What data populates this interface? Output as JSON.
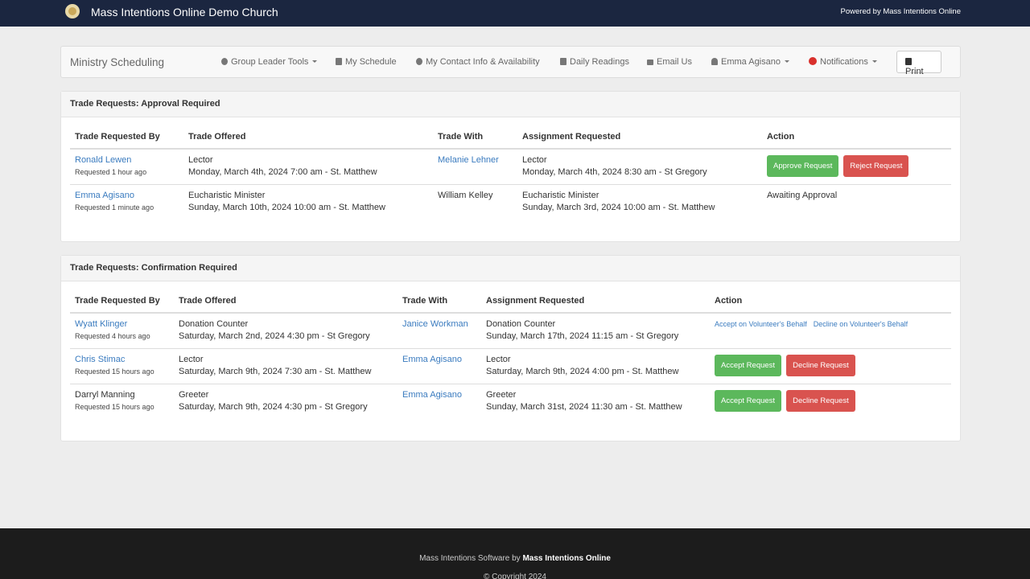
{
  "header": {
    "title": "Mass Intentions Online Demo Church",
    "powered": "Powered by Mass Intentions Online"
  },
  "nav": {
    "brand": "Ministry Scheduling",
    "items": [
      "Group Leader Tools",
      "My Schedule",
      "My Contact Info & Availability",
      "Daily Readings",
      "Email Us",
      "Emma Agisano",
      "Notifications"
    ],
    "print": "Print"
  },
  "approval": {
    "title": "Trade Requests: Approval Required",
    "columns": [
      "Trade Requested By",
      "Trade Offered",
      "Trade With",
      "Assignment Requested",
      "Action"
    ],
    "rows": [
      {
        "requester": "Ronald Lewen",
        "requested": "Requested 1 hour ago",
        "offered_role": "Lector",
        "offered_time": "Monday, March 4th, 2024 7:00 am - St. Matthew",
        "with": "Melanie Lehner",
        "assignment_role": "Lector",
        "assignment_time": "Monday, March 4th, 2024 8:30 am - St Gregory",
        "actions": [
          "Approve Request",
          "Reject Request"
        ]
      },
      {
        "requester": "Emma Agisano",
        "requested": "Requested 1 minute ago",
        "offered_role": "Eucharistic Minister",
        "offered_time": "Sunday, March 10th, 2024 10:00 am - St. Matthew",
        "with": "William Kelley",
        "assignment_role": "Eucharistic Minister",
        "assignment_time": "Sunday, March 3rd, 2024 10:00 am - St. Matthew",
        "status": "Awaiting Approval"
      }
    ]
  },
  "confirmation": {
    "title": "Trade Requests: Confirmation Required",
    "columns": [
      "Trade Requested By",
      "Trade Offered",
      "Trade With",
      "Assignment Requested",
      "Action"
    ],
    "rows": [
      {
        "requester": "Wyatt Klinger",
        "requested": "Requested 4 hours ago",
        "offered_role": "Donation Counter",
        "offered_time": "Saturday, March 2nd, 2024 4:30 pm - St Gregory",
        "with": "Janice Workman",
        "assignment_role": "Donation Counter",
        "assignment_time": "Sunday, March 17th, 2024 11:15 am - St Gregory",
        "actions": [
          "Accept on Volunteer's Behalf",
          "Decline on Volunteer's Behalf"
        ]
      },
      {
        "requester": "Chris Stimac",
        "requested": "Requested 15 hours ago",
        "offered_role": "Lector",
        "offered_time": "Saturday, March 9th, 2024 7:30 am - St. Matthew",
        "with": "Emma Agisano",
        "assignment_role": "Lector",
        "assignment_time": "Saturday, March 9th, 2024 4:00 pm - St. Matthew",
        "actions": [
          "Accept Request",
          "Decline Request"
        ]
      },
      {
        "requester": "Darryl Manning",
        "requested": "Requested 15 hours ago",
        "offered_role": "Greeter",
        "offered_time": "Saturday, March 9th, 2024 4:30 pm - St Gregory",
        "with": "Emma Agisano",
        "assignment_role": "Greeter",
        "assignment_time": "Sunday, March 31st, 2024 11:30 am - St. Matthew",
        "actions": [
          "Accept Request",
          "Decline Request"
        ]
      }
    ]
  },
  "footer": {
    "prefix": "Mass Intentions Software by",
    "brand": "Mass Intentions Online",
    "copyright": "© Copyright 2024"
  }
}
